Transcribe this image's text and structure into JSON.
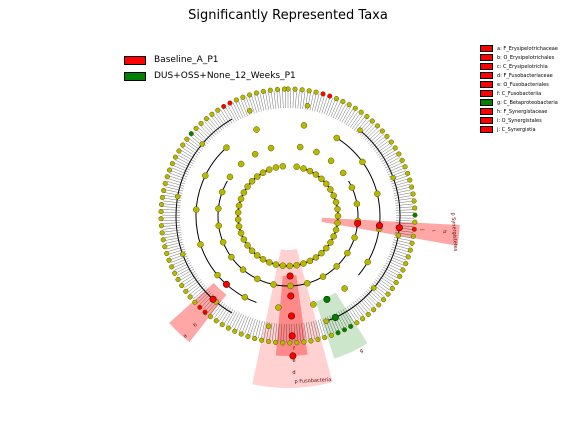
{
  "title": "Significantly Represented Taxa",
  "legend": [
    {
      "label": "Baseline_A_P1",
      "color": "#ff0000"
    },
    {
      "label": "DUS+OSS+None_12_Weeks_P1",
      "color": "#008000"
    }
  ],
  "taxa_key": [
    {
      "label": "a: F_Erysipelotrichaceae",
      "color": "#ff0000"
    },
    {
      "label": "b: O_Erysipelotrichales",
      "color": "#ff0000"
    },
    {
      "label": "c: C_Erysipelotrichia",
      "color": "#ff0000"
    },
    {
      "label": "d: F_Fusobacteriaceae",
      "color": "#ff0000"
    },
    {
      "label": "e: O_Fusobacteriales",
      "color": "#ff0000"
    },
    {
      "label": "f: C_Fusobacteriia",
      "color": "#ff0000"
    },
    {
      "label": "g: C_Betaproteobacteria",
      "color": "#008000"
    },
    {
      "label": "h: F_Synergistaceae",
      "color": "#ff0000"
    },
    {
      "label": "i: O_Synergistales",
      "color": "#ff0000"
    },
    {
      "label": "j: C_Synergistia",
      "color": "#ff0000"
    }
  ],
  "clade_labels": {
    "synergistetes": "p Synergistetes",
    "fusobacteria": "p Fusobacteria",
    "a": "a",
    "b": "b",
    "c": "c",
    "d": "d",
    "e": "e",
    "f": "f",
    "g": "g",
    "h": "h",
    "i": "i",
    "j": "j"
  },
  "colors": {
    "node": "#b8b800",
    "node_stroke": "#555500",
    "enriched_baseline": "#ff0000",
    "enriched_12weeks": "#008000"
  }
}
